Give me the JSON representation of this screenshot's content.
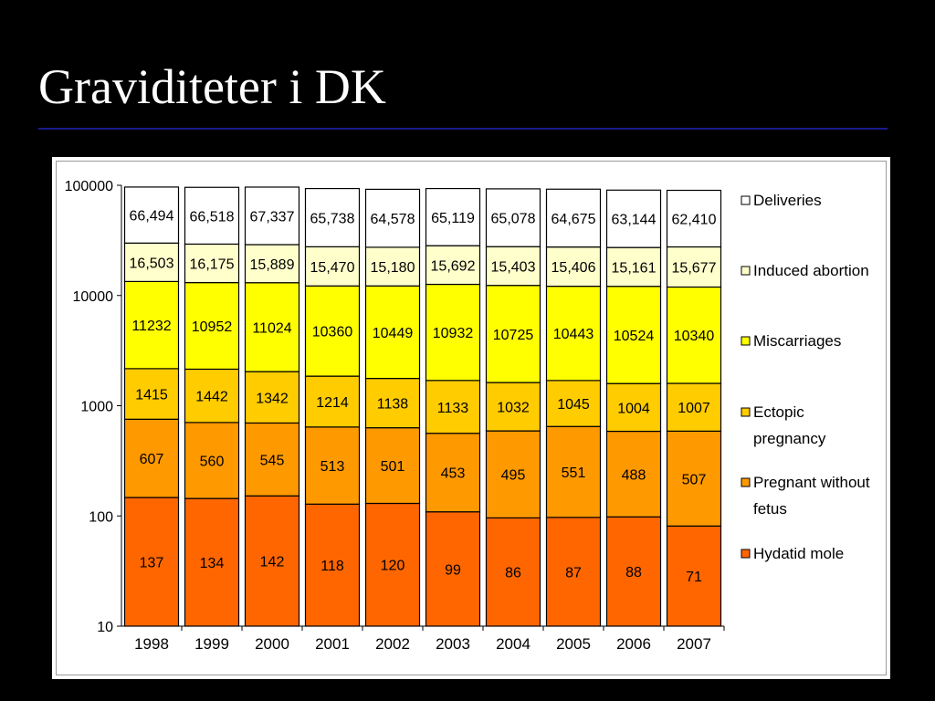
{
  "slide": {
    "title": "Graviditeter i DK"
  },
  "colors": {
    "Deliveries": "#ffffff",
    "Induced abortion": "#ffffcc",
    "Miscarriages": "#ffff00",
    "Ectopic pregnancy": "#ffcc00",
    "Pregnant without fetus": "#ff9900",
    "Hydatid mole": "#ff6600"
  },
  "chart_data": {
    "type": "bar",
    "stacked": true,
    "yscale": "log",
    "ylim": [
      10,
      100000
    ],
    "yticks": [
      "10",
      "100",
      "1000",
      "10000",
      "100000"
    ],
    "categories": [
      "1998",
      "1999",
      "2000",
      "2001",
      "2002",
      "2003",
      "2004",
      "2005",
      "2006",
      "2007"
    ],
    "series": [
      {
        "name": "Hydatid mole",
        "values": [
          137,
          134,
          142,
          118,
          120,
          99,
          86,
          87,
          88,
          71
        ],
        "labels": [
          "137",
          "134",
          "142",
          "118",
          "120",
          "99",
          "86",
          "87",
          "88",
          "71"
        ]
      },
      {
        "name": "Pregnant without fetus",
        "values": [
          607,
          560,
          545,
          513,
          501,
          453,
          495,
          551,
          488,
          507
        ],
        "labels": [
          "607",
          "560",
          "545",
          "513",
          "501",
          "453",
          "495",
          "551",
          "488",
          "507"
        ]
      },
      {
        "name": "Ectopic pregnancy",
        "values": [
          1415,
          1442,
          1342,
          1214,
          1138,
          1133,
          1032,
          1045,
          1004,
          1007
        ],
        "labels": [
          "1415",
          "1442",
          "1342",
          "1214",
          "1138",
          "1133",
          "1032",
          "1045",
          "1004",
          "1007"
        ]
      },
      {
        "name": "Miscarriages",
        "values": [
          11232,
          10952,
          11024,
          10360,
          10449,
          10932,
          10725,
          10443,
          10524,
          10340
        ],
        "labels": [
          "11232",
          "10952",
          "11024",
          "10360",
          "10449",
          "10932",
          "10725",
          "10443",
          "10524",
          "10340"
        ]
      },
      {
        "name": "Induced abortion",
        "values": [
          16503,
          16175,
          15889,
          15470,
          15180,
          15692,
          15403,
          15406,
          15161,
          15677
        ],
        "labels": [
          "16,503",
          "16,175",
          "15,889",
          "15,470",
          "15,180",
          "15,692",
          "15,403",
          "15,406",
          "15,161",
          "15,677"
        ]
      },
      {
        "name": "Deliveries",
        "values": [
          66494,
          66518,
          67337,
          65738,
          64578,
          65119,
          65078,
          64675,
          63144,
          62410
        ],
        "labels": [
          "66,494",
          "66,518",
          "67,337",
          "65,738",
          "64,578",
          "65,119",
          "65,078",
          "64,675",
          "63,144",
          "62,410"
        ]
      }
    ],
    "legend": {
      "position": "right",
      "entries": [
        {
          "series": "Deliveries",
          "lines": [
            "Deliveries"
          ]
        },
        {
          "series": "Induced abortion",
          "lines": [
            "Induced abortion"
          ]
        },
        {
          "series": "Miscarriages",
          "lines": [
            "Miscarriages"
          ]
        },
        {
          "series": "Ectopic pregnancy",
          "lines": [
            "Ectopic",
            "pregnancy"
          ]
        },
        {
          "series": "Pregnant without fetus",
          "lines": [
            "Pregnant without",
            "fetus"
          ]
        },
        {
          "series": "Hydatid mole",
          "lines": [
            "Hydatid mole"
          ]
        }
      ]
    },
    "grid": false
  }
}
